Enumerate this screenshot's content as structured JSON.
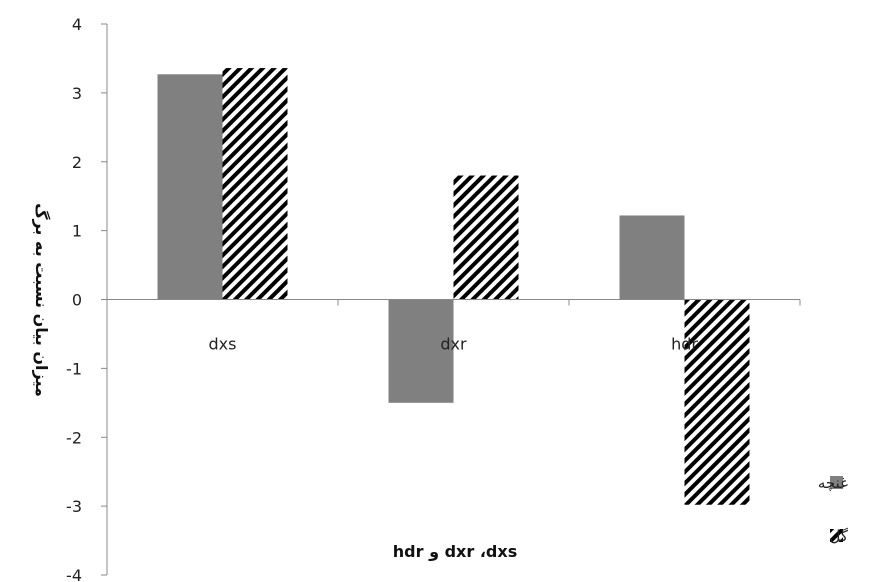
{
  "chart_data": {
    "type": "bar",
    "categories": [
      "dxs",
      "dxr",
      "hdr"
    ],
    "series": [
      {
        "name": "غنچه",
        "values": [
          3.27,
          -1.5,
          1.22
        ],
        "fill": "solid",
        "color": "#808080"
      },
      {
        "name": "گل",
        "values": [
          3.36,
          1.8,
          -2.98
        ],
        "fill": "hatch",
        "color": "#000000"
      }
    ],
    "ylim": [
      -4,
      4
    ],
    "yticks": [
      4,
      3,
      2,
      1,
      0,
      -1,
      -2,
      -3,
      -4
    ],
    "xlabel": "hdr و dxr ،dxs",
    "ylabel": "میزان بیان نسبت به برگ",
    "grid": false,
    "legend": "right"
  }
}
